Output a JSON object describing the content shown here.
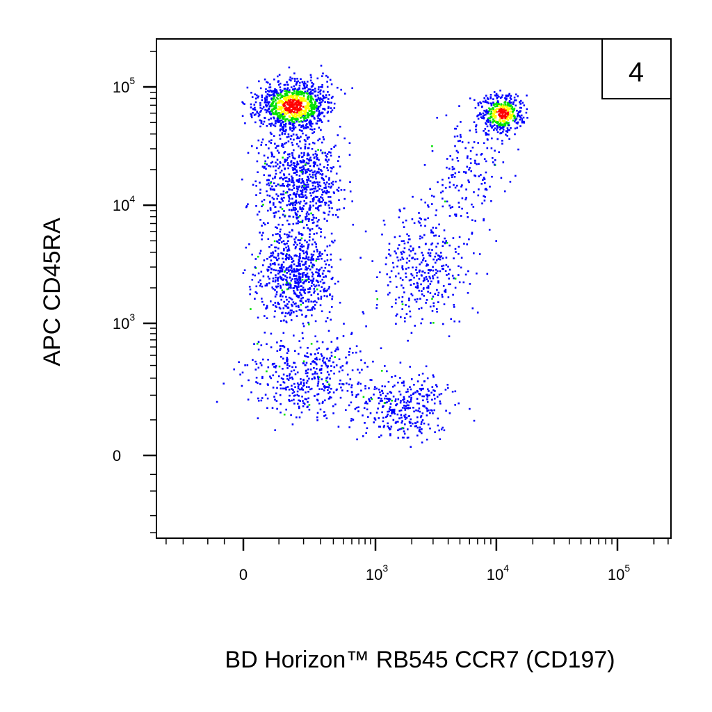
{
  "chart_data": {
    "type": "scatter",
    "style": "flow-cytometry pseudocolor dot plot",
    "panel_label": "4",
    "xlabel": "BD Horizon™ RB545  CCR7 (CD197)",
    "ylabel": "APC  CD45RA",
    "x_scale": "biexponential",
    "y_scale": "biexponential",
    "x_ticks": [
      {
        "value": 0,
        "base": "0",
        "exp": ""
      },
      {
        "value": 1000,
        "base": "10",
        "exp": "3"
      },
      {
        "value": 10000,
        "base": "10",
        "exp": "4"
      },
      {
        "value": 100000,
        "base": "10",
        "exp": "5"
      }
    ],
    "y_ticks": [
      {
        "value": 0,
        "base": "0",
        "exp": ""
      },
      {
        "value": 1000,
        "base": "10",
        "exp": "3"
      },
      {
        "value": 10000,
        "base": "10",
        "exp": "4"
      },
      {
        "value": 100000,
        "base": "10",
        "exp": "5"
      }
    ],
    "xlim": [
      -600,
      262143
    ],
    "ylim": [
      -600,
      262143
    ],
    "density_colors": [
      "#0000ff",
      "#00e000",
      "#ffff00",
      "#ff0000"
    ],
    "populations": [
      {
        "x": 150,
        "y": 70000,
        "count": 1000
      },
      {
        "x": 180,
        "y": 15000,
        "count": 750
      },
      {
        "x": 160,
        "y": 2500,
        "count": 650
      },
      {
        "x": 220,
        "y": 300,
        "count": 420
      },
      {
        "x": 11000,
        "y": 60000,
        "count": 420
      },
      {
        "x": 2500,
        "y": 3000,
        "count": 360
      },
      {
        "x": 1800,
        "y": 150,
        "count": 320
      },
      {
        "x": 6000,
        "y": 20000,
        "count": 160
      }
    ]
  }
}
